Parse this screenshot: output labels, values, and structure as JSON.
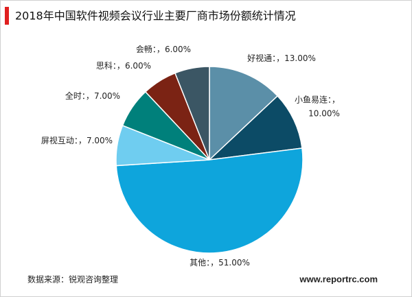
{
  "chart_data": {
    "type": "pie",
    "title": "2018年中国软件视频会议行业主要厂商市场份额统计情况",
    "categories": [
      "好视通：，",
      "小鱼易连：，",
      "其他：，",
      "屏视互动：，",
      "全时：，",
      "思科：，",
      "会畅：，"
    ],
    "values": [
      13,
      10,
      51,
      7,
      7,
      6,
      6
    ],
    "value_labels": [
      "13.00%",
      "10.00%",
      "51.00%",
      "7.00%",
      "7.00%",
      "6.00%",
      "6.00%"
    ],
    "colors": [
      "#5b8fa8",
      "#0c4b66",
      "#0ea5dc",
      "#6fcdf0",
      "#00807b",
      "#7b2314",
      "#3b5664"
    ],
    "source": "数据来源：锐观咨询整理",
    "website": "www.reportrc.com"
  }
}
